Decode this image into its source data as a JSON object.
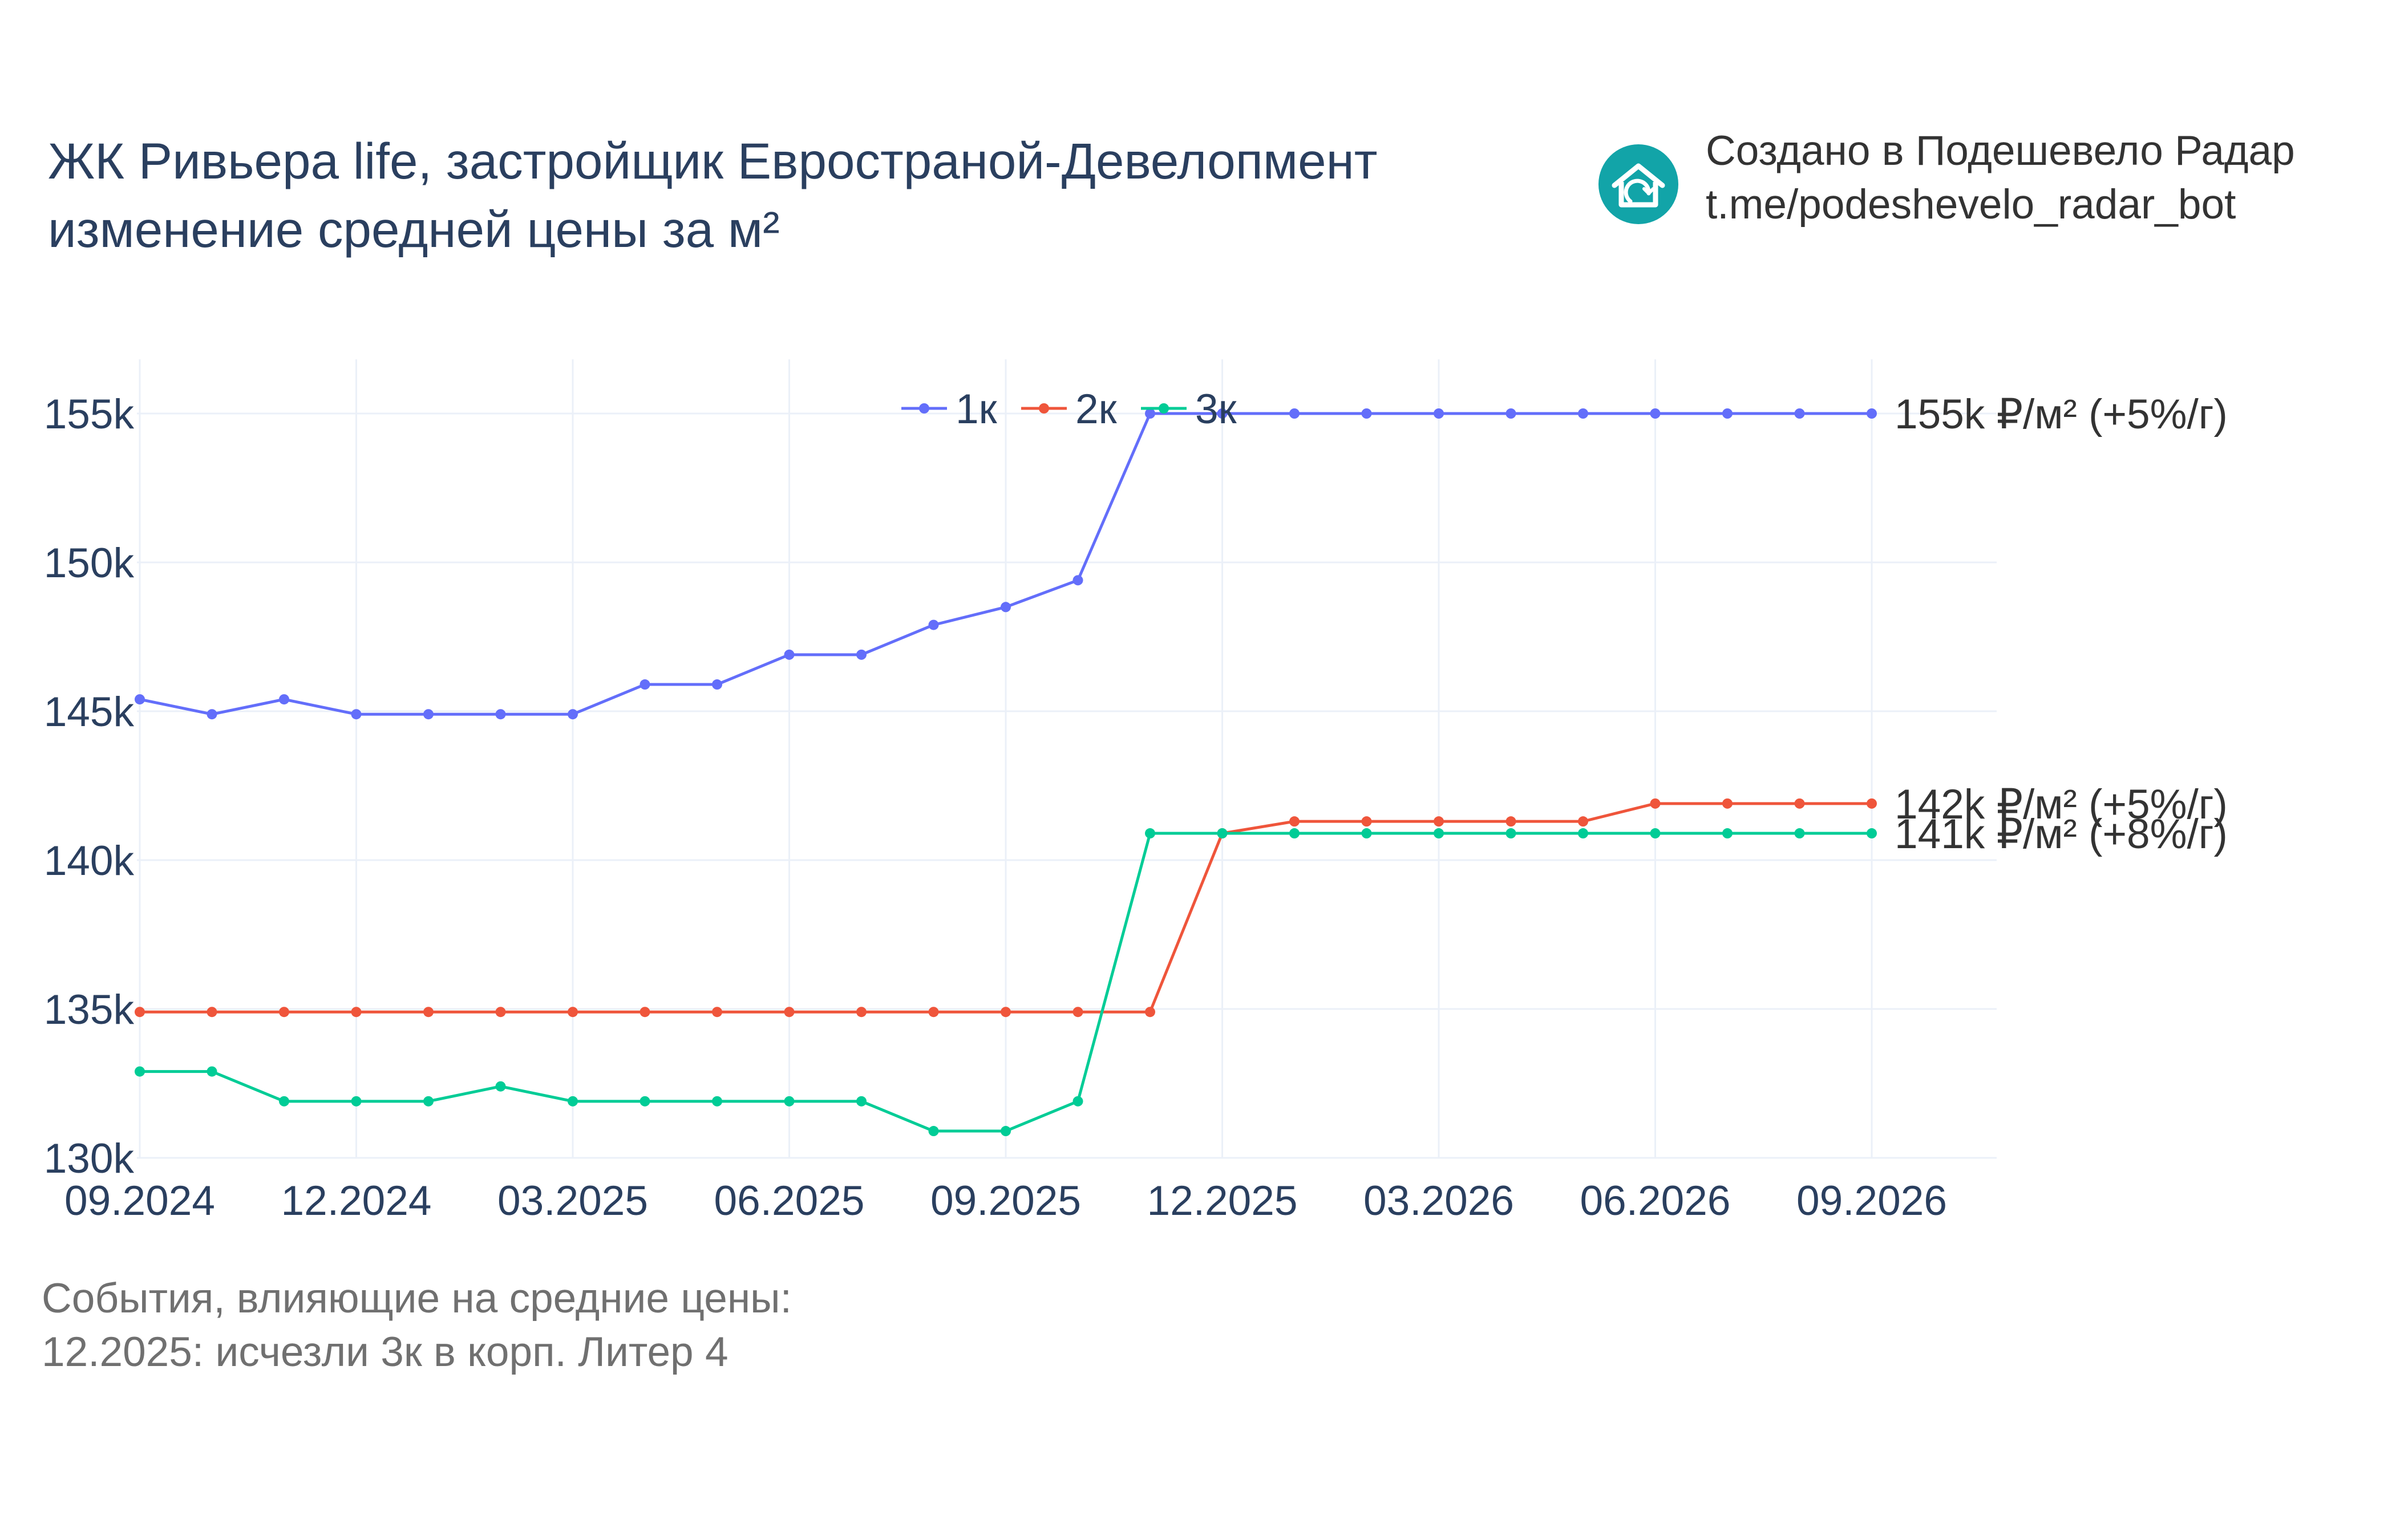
{
  "header": {
    "title_line1": "ЖК Ривьера life, застройщик Евространой-Девелопмент",
    "title_line2": "изменение средней цены за м²"
  },
  "credit": {
    "line1": "Создано в Подешевело Радар",
    "line2": "t.me/podeshevelo_radar_bot",
    "logo_color": "#12a4a8"
  },
  "events": {
    "heading": "События, влияющие на средние цены:",
    "items": [
      "12.2025: исчезли 3к в корп. Литер 4"
    ]
  },
  "chart_data": {
    "type": "line",
    "x": [
      "2024-09",
      "2024-10",
      "2024-11",
      "2024-12",
      "2025-01",
      "2025-02",
      "2025-03",
      "2025-04",
      "2025-05",
      "2025-06",
      "2025-07",
      "2025-08",
      "2025-09",
      "2025-10",
      "2025-11",
      "2025-12",
      "2026-01",
      "2026-02",
      "2026-03",
      "2026-04",
      "2026-05",
      "2026-06",
      "2026-07",
      "2026-08",
      "2026-09"
    ],
    "series": [
      {
        "name": "1к",
        "color": "#636efa",
        "values": [
          145400,
          144900,
          145400,
          144900,
          144900,
          144900,
          144900,
          145900,
          145900,
          146900,
          146900,
          147900,
          148500,
          149400,
          155000,
          155000,
          155000,
          155000,
          155000,
          155000,
          155000,
          155000,
          155000,
          155000,
          155000
        ],
        "end_label": "155k ₽/м² (+5%/г)"
      },
      {
        "name": "2к",
        "color": "#ef553b",
        "values": [
          134900,
          134900,
          134900,
          134900,
          134900,
          134900,
          134900,
          134900,
          134900,
          134900,
          134900,
          134900,
          134900,
          134900,
          134900,
          140900,
          141300,
          141300,
          141300,
          141300,
          141300,
          141900,
          141900,
          141900,
          141900
        ],
        "end_label": "142k ₽/м² (+5%/г)"
      },
      {
        "name": "3к",
        "color": "#00cc96",
        "values": [
          132900,
          132900,
          131900,
          131900,
          131900,
          132400,
          131900,
          131900,
          131900,
          131900,
          131900,
          130900,
          130900,
          131900,
          140900,
          140900,
          140900,
          140900,
          140900,
          140900,
          140900,
          140900,
          140900,
          140900,
          140900
        ],
        "end_label": "141k ₽/м² (+8%/г)"
      }
    ],
    "ylim": [
      130000,
      156000
    ],
    "yticks": [
      {
        "value": 130000,
        "label": "130k"
      },
      {
        "value": 135000,
        "label": "135k"
      },
      {
        "value": 140000,
        "label": "140k"
      },
      {
        "value": 145000,
        "label": "145k"
      },
      {
        "value": 150000,
        "label": "150k"
      },
      {
        "value": 155000,
        "label": "155k"
      }
    ],
    "xticks": [
      "09.2024",
      "12.2024",
      "03.2025",
      "06.2025",
      "09.2025",
      "12.2025",
      "03.2026",
      "06.2026",
      "09.2026"
    ],
    "grid": true,
    "legend_position": "top-center"
  }
}
